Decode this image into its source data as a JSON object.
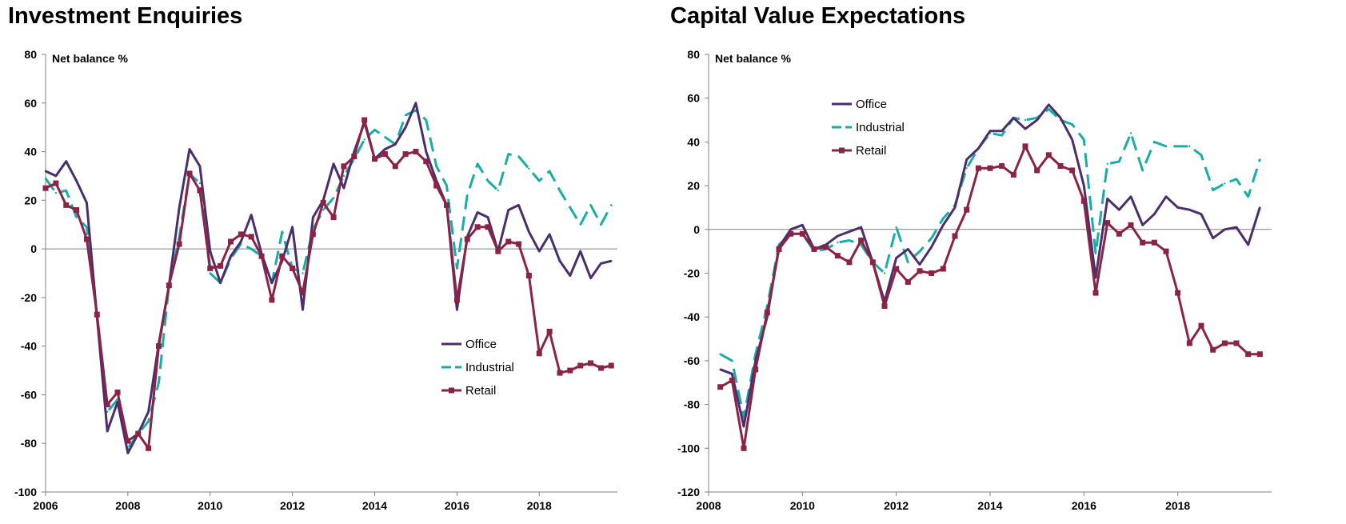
{
  "chart_data": [
    {
      "type": "line",
      "title": "Investment Enquiries",
      "ylabel": "Net balance %",
      "xlabel": "",
      "xlim": [
        2006,
        2019.9
      ],
      "ylim": [
        -100,
        80
      ],
      "yticks": [
        -100,
        -80,
        -60,
        -40,
        -20,
        0,
        20,
        40,
        60,
        80
      ],
      "xticks": [
        2006,
        2008,
        2010,
        2012,
        2014,
        2016,
        2018
      ],
      "zero_line": true,
      "grid": false,
      "legend": "bottom-right",
      "series": [
        {
          "name": "Office",
          "color": "#4b2e6b",
          "dash": "solid",
          "marker": "none",
          "x": [
            2006,
            2006.25,
            2006.5,
            2006.75,
            2007,
            2007.25,
            2007.5,
            2007.75,
            2008,
            2008.25,
            2008.5,
            2008.75,
            2009,
            2009.25,
            2009.5,
            2009.75,
            2010,
            2010.25,
            2010.5,
            2010.75,
            2011,
            2011.25,
            2011.5,
            2011.75,
            2012,
            2012.25,
            2012.5,
            2012.75,
            2013,
            2013.25,
            2013.5,
            2013.75,
            2014,
            2014.25,
            2014.5,
            2014.75,
            2015,
            2015.25,
            2015.5,
            2015.75,
            2016,
            2016.25,
            2016.5,
            2016.75,
            2017,
            2017.25,
            2017.5,
            2017.75,
            2018,
            2018.25,
            2018.5,
            2018.75,
            2019,
            2019.25,
            2019.5,
            2019.75
          ],
          "values": [
            32,
            30,
            36,
            28,
            19,
            -28,
            -75,
            -63,
            -84,
            -76,
            -67,
            -39,
            -15,
            17,
            41,
            34,
            -1,
            -14,
            -3,
            3,
            14,
            -2,
            -14,
            -5,
            9,
            -25,
            13,
            20,
            35,
            25,
            40,
            52,
            37,
            41,
            43,
            50,
            60,
            40,
            28,
            18,
            -25,
            5,
            15,
            13,
            -1,
            16,
            18,
            7,
            -1,
            6,
            -5,
            -11,
            -1,
            -12,
            -6,
            -5
          ]
        },
        {
          "name": "Industrial",
          "color": "#1aada5",
          "dash": "dashed",
          "marker": "none",
          "x": [
            2006,
            2006.25,
            2006.5,
            2006.75,
            2007,
            2007.25,
            2007.5,
            2007.75,
            2008,
            2008.25,
            2008.5,
            2008.75,
            2009,
            2009.25,
            2009.5,
            2009.75,
            2010,
            2010.25,
            2010.5,
            2010.75,
            2011,
            2011.25,
            2011.5,
            2011.75,
            2012,
            2012.25,
            2012.5,
            2012.75,
            2013,
            2013.25,
            2013.5,
            2013.75,
            2014,
            2014.25,
            2014.5,
            2014.75,
            2015,
            2015.25,
            2015.5,
            2015.75,
            2016,
            2016.25,
            2016.5,
            2016.75,
            2017,
            2017.25,
            2017.5,
            2017.75,
            2018,
            2018.25,
            2018.5,
            2018.75,
            2019,
            2019.25,
            2019.5,
            2019.75
          ],
          "values": [
            29,
            23,
            24,
            13,
            9,
            -28,
            -67,
            -62,
            -82,
            -76,
            -71,
            -55,
            -15,
            5,
            31,
            27,
            -10,
            -14,
            -4,
            2,
            0,
            -3,
            -14,
            7,
            -8,
            -10,
            8,
            16,
            21,
            30,
            37,
            45,
            49,
            46,
            43,
            55,
            57,
            53,
            34,
            26,
            -8,
            22,
            35,
            28,
            24,
            39,
            38,
            33,
            28,
            32,
            24,
            17,
            10,
            18,
            10,
            18
          ]
        },
        {
          "name": "Retail",
          "color": "#8b2346",
          "dash": "solid",
          "marker": "square",
          "x": [
            2006,
            2006.25,
            2006.5,
            2006.75,
            2007,
            2007.25,
            2007.5,
            2007.75,
            2008,
            2008.25,
            2008.5,
            2008.75,
            2009,
            2009.25,
            2009.5,
            2009.75,
            2010,
            2010.25,
            2010.5,
            2010.75,
            2011,
            2011.25,
            2011.5,
            2011.75,
            2012,
            2012.25,
            2012.5,
            2012.75,
            2013,
            2013.25,
            2013.5,
            2013.75,
            2014,
            2014.25,
            2014.5,
            2014.75,
            2015,
            2015.25,
            2015.5,
            2015.75,
            2016,
            2016.25,
            2016.5,
            2016.75,
            2017,
            2017.25,
            2017.5,
            2017.75,
            2018,
            2018.25,
            2018.5,
            2018.75,
            2019,
            2019.25,
            2019.5,
            2019.75
          ],
          "values": [
            25,
            27,
            18,
            16,
            4,
            -27,
            -64,
            -59,
            -79,
            -76,
            -82,
            -40,
            -15,
            2,
            31,
            24,
            -8,
            -7,
            3,
            6,
            5,
            -3,
            -21,
            -3,
            -8,
            -18,
            6,
            19,
            13,
            34,
            38,
            53,
            37,
            39,
            34,
            39,
            40,
            36,
            26,
            18,
            -21,
            4,
            9,
            9,
            -1,
            3,
            2,
            -11,
            -43,
            -34,
            -51,
            -50,
            -48,
            -47,
            -49,
            -48
          ]
        }
      ]
    },
    {
      "type": "line",
      "title": "Capital Value Expectations",
      "ylabel": "Net balance %",
      "xlabel": "",
      "xlim": [
        2008,
        2020
      ],
      "ylim": [
        -120,
        80
      ],
      "yticks": [
        -120,
        -100,
        -80,
        -60,
        -40,
        -20,
        0,
        20,
        40,
        60,
        80
      ],
      "xticks": [
        2008,
        2010,
        2012,
        2014,
        2016,
        2018
      ],
      "zero_line": true,
      "grid": false,
      "legend": "top-left",
      "series": [
        {
          "name": "Office",
          "color": "#4b2e6b",
          "dash": "solid",
          "marker": "none",
          "x": [
            2008.25,
            2008.5,
            2008.75,
            2009,
            2009.25,
            2009.5,
            2009.75,
            2010,
            2010.25,
            2010.5,
            2010.75,
            2011,
            2011.25,
            2011.5,
            2011.75,
            2012,
            2012.25,
            2012.5,
            2012.75,
            2013,
            2013.25,
            2013.5,
            2013.75,
            2014,
            2014.25,
            2014.5,
            2014.75,
            2015,
            2015.25,
            2015.5,
            2015.75,
            2016,
            2016.25,
            2016.5,
            2016.75,
            2017,
            2017.25,
            2017.5,
            2017.75,
            2018,
            2018.25,
            2018.5,
            2018.75,
            2019,
            2019.25,
            2019.5,
            2019.75
          ],
          "values": [
            -64,
            -66,
            -90,
            -60,
            -40,
            -8,
            0,
            2,
            -9,
            -7,
            -3,
            -1,
            1,
            -15,
            -33,
            -13,
            -9,
            -16,
            -8,
            2,
            10,
            32,
            37,
            45,
            45,
            51,
            46,
            50,
            57,
            51,
            41,
            20,
            -22,
            14,
            9,
            15,
            2,
            7,
            15,
            10,
            9,
            7,
            -4,
            0,
            1,
            -7,
            10
          ]
        },
        {
          "name": "Industrial",
          "color": "#1aada5",
          "dash": "dashed",
          "marker": "none",
          "x": [
            2008.25,
            2008.5,
            2008.75,
            2009,
            2009.25,
            2009.5,
            2009.75,
            2010,
            2010.25,
            2010.5,
            2010.75,
            2011,
            2011.25,
            2011.5,
            2011.75,
            2012,
            2012.25,
            2012.5,
            2012.75,
            2013,
            2013.25,
            2013.5,
            2013.75,
            2014,
            2014.25,
            2014.5,
            2014.75,
            2015,
            2015.25,
            2015.5,
            2015.75,
            2016,
            2016.25,
            2016.5,
            2016.75,
            2017,
            2017.25,
            2017.5,
            2017.75,
            2018,
            2018.25,
            2018.5,
            2018.75,
            2019,
            2019.25,
            2019.5,
            2019.75
          ],
          "values": [
            -57,
            -60,
            -86,
            -57,
            -35,
            -7,
            -2,
            -2,
            -10,
            -9,
            -6,
            -5,
            -7,
            -15,
            -20,
            1,
            -15,
            -10,
            -4,
            5,
            11,
            28,
            37,
            44,
            43,
            51,
            50,
            51,
            55,
            50,
            48,
            41,
            -11,
            30,
            31,
            44,
            27,
            40,
            38,
            38,
            38,
            34,
            18,
            21,
            23,
            15,
            32
          ]
        },
        {
          "name": "Retail",
          "color": "#8b2346",
          "dash": "solid",
          "marker": "square",
          "x": [
            2008.25,
            2008.5,
            2008.75,
            2009,
            2009.25,
            2009.5,
            2009.75,
            2010,
            2010.25,
            2010.5,
            2010.75,
            2011,
            2011.25,
            2011.5,
            2011.75,
            2012,
            2012.25,
            2012.5,
            2012.75,
            2013,
            2013.25,
            2013.5,
            2013.75,
            2014,
            2014.25,
            2014.5,
            2014.75,
            2015,
            2015.25,
            2015.5,
            2015.75,
            2016,
            2016.25,
            2016.5,
            2016.75,
            2017,
            2017.25,
            2017.5,
            2017.75,
            2018,
            2018.25,
            2018.5,
            2018.75,
            2019,
            2019.25,
            2019.5,
            2019.75
          ],
          "values": [
            -72,
            -69,
            -100,
            -64,
            -38,
            -9,
            -2,
            -2,
            -9,
            -8,
            -12,
            -15,
            -5,
            -15,
            -35,
            -18,
            -24,
            -19,
            -20,
            -18,
            -3,
            9,
            28,
            28,
            29,
            25,
            38,
            27,
            34,
            29,
            27,
            13,
            -29,
            3,
            -2,
            2,
            -6,
            -6,
            -10,
            -29,
            -52,
            -44,
            -55,
            -52,
            -52,
            -57,
            -57
          ]
        }
      ]
    }
  ]
}
